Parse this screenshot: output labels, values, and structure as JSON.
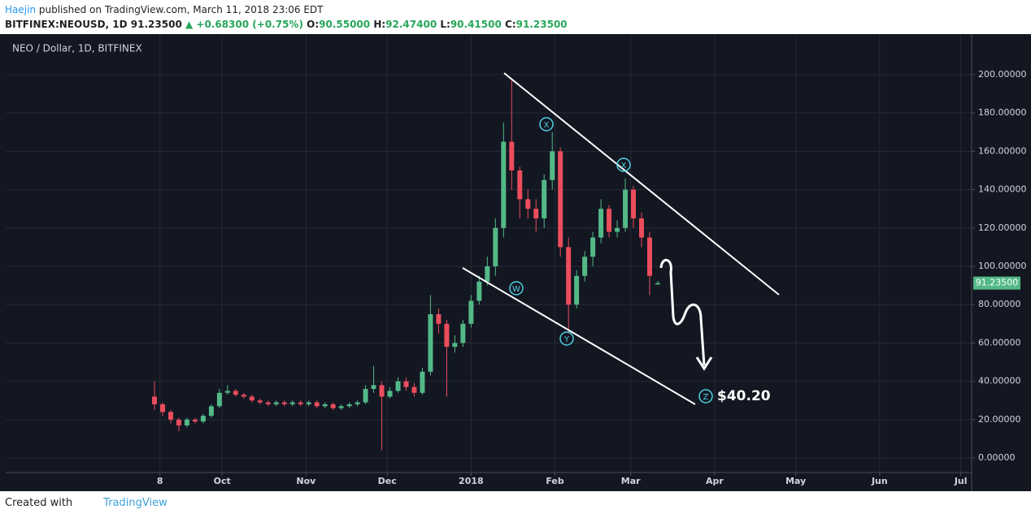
{
  "header": {
    "author": "Haejin",
    "published": "published on TradingView.com, March 11, 2018 23:06 EDT",
    "symbol": "BITFINEX:NEOUSD, 1D",
    "price": "91.23500",
    "change": "▲ +0.68300 (+0.75%)",
    "o_label": "O:",
    "o": "90.55000",
    "h_label": "H:",
    "h": "92.47400",
    "l_label": "L:",
    "l": "90.41500",
    "c_label": "C:",
    "c": "91.23500"
  },
  "chart_data": {
    "type": "candlestick",
    "title": "NEO / Dollar, 1D, BITFINEX",
    "x": [
      5,
      8,
      11,
      14,
      17,
      20,
      23,
      26,
      29,
      32,
      35,
      38,
      41,
      44,
      47,
      50,
      53,
      56,
      59,
      62,
      65,
      68,
      71,
      74,
      77,
      80,
      83,
      86,
      89,
      92,
      95,
      98,
      101,
      104,
      107,
      110,
      113,
      116,
      119,
      122,
      125,
      128,
      131,
      134,
      137,
      140,
      143,
      146,
      149,
      152,
      155,
      158,
      161,
      164,
      167,
      170,
      173,
      176,
      179,
      182,
      185,
      188,
      191
    ],
    "open": [
      32,
      28,
      24,
      20,
      17,
      20,
      19,
      22,
      27,
      34,
      35,
      33,
      32,
      30,
      29,
      28,
      29,
      28,
      29,
      28,
      29,
      27,
      28,
      26,
      27,
      28,
      29,
      36,
      38,
      32,
      35,
      40,
      37,
      34,
      45,
      75,
      70,
      58,
      60,
      70,
      82,
      92,
      100,
      120,
      165,
      150,
      135,
      130,
      125,
      145,
      160,
      110,
      80,
      95,
      105,
      115,
      130,
      118,
      120,
      140,
      125,
      115,
      90.55
    ],
    "high": [
      40,
      29,
      25,
      21,
      21,
      21,
      23,
      28,
      36,
      38,
      36,
      34,
      33,
      31,
      30,
      30,
      30,
      30,
      30,
      30,
      30,
      29,
      29,
      28,
      29,
      30,
      38,
      48,
      40,
      37,
      42,
      42,
      39,
      47,
      85,
      78,
      72,
      64,
      72,
      85,
      95,
      105,
      125,
      175,
      197,
      152,
      140,
      135,
      148,
      170,
      162,
      115,
      98,
      108,
      118,
      135,
      132,
      124,
      146,
      142,
      128,
      118,
      92.474
    ],
    "low": [
      25,
      22,
      18,
      14,
      16,
      18,
      18,
      21,
      26,
      33,
      32,
      31,
      29,
      28,
      27,
      27,
      27,
      27,
      27,
      27,
      26,
      26,
      25,
      25,
      26,
      27,
      28,
      34,
      4,
      31,
      34,
      35,
      32,
      33,
      43,
      65,
      32,
      55,
      58,
      68,
      80,
      90,
      95,
      115,
      140,
      125,
      125,
      118,
      120,
      140,
      105,
      65,
      78,
      92,
      100,
      112,
      115,
      115,
      118,
      120,
      110,
      85,
      90.415
    ],
    "close": [
      28,
      24,
      20,
      17,
      20,
      19,
      22,
      27,
      34,
      35,
      33,
      32,
      30,
      29,
      28,
      29,
      28,
      29,
      28,
      29,
      27,
      28,
      26,
      27,
      28,
      29,
      36,
      38,
      32,
      35,
      40,
      37,
      34,
      45,
      75,
      70,
      58,
      60,
      70,
      82,
      92,
      100,
      120,
      165,
      150,
      135,
      130,
      125,
      145,
      160,
      110,
      80,
      95,
      105,
      115,
      130,
      118,
      120,
      140,
      125,
      115,
      95,
      91.235
    ],
    "up_color": "#53b987",
    "down_color": "#eb4d5c",
    "last_price_label": "91.23500",
    "xlim": [
      -50,
      307
    ],
    "ylim": [
      -7.6,
      218.6
    ],
    "xticks": [
      {
        "value": 7,
        "label": "8"
      },
      {
        "value": 30,
        "label": "Oct"
      },
      {
        "value": 61,
        "label": "Nov"
      },
      {
        "value": 91,
        "label": "Dec"
      },
      {
        "value": 122,
        "label": "2018"
      },
      {
        "value": 153,
        "label": "Feb"
      },
      {
        "value": 181,
        "label": "Mar"
      },
      {
        "value": 212,
        "label": "Apr"
      },
      {
        "value": 242,
        "label": "May"
      },
      {
        "value": 273,
        "label": "Jun"
      },
      {
        "value": 303,
        "label": "Jul"
      }
    ],
    "yticks": [
      {
        "value": 0,
        "label": "0.00000"
      },
      {
        "value": 20,
        "label": "20.00000"
      },
      {
        "value": 40,
        "label": "40.00000"
      },
      {
        "value": 60,
        "label": "60.00000"
      },
      {
        "value": 80,
        "label": "80.00000"
      },
      {
        "value": 100,
        "label": "100.00000"
      },
      {
        "value": 120,
        "label": "120.00000"
      },
      {
        "value": 140,
        "label": "140.00000"
      },
      {
        "value": 160,
        "label": "160.00000"
      },
      {
        "value": 180,
        "label": "180.00000"
      },
      {
        "value": 200,
        "label": "200.00000"
      }
    ],
    "grid": true,
    "annotations": [
      "W",
      "X",
      "Y",
      "X",
      "Z",
      "$40.20"
    ]
  },
  "footer": {
    "created": "Created with",
    "brand": "TradingView"
  }
}
